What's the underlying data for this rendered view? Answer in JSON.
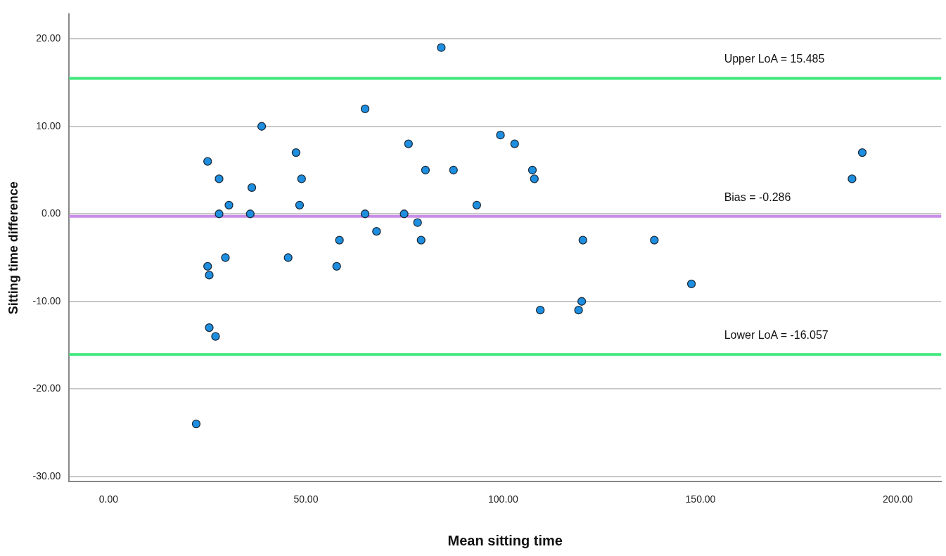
{
  "chart_data": {
    "type": "scatter",
    "xlabel": "Mean sitting time",
    "ylabel": "Sitting time difference",
    "xlim": [
      -10,
      211
    ],
    "ylim": [
      -30.6,
      22.8
    ],
    "xticks": [
      {
        "value": 0,
        "label": "0.00"
      },
      {
        "value": 50,
        "label": "50.00"
      },
      {
        "value": 100,
        "label": "100.00"
      },
      {
        "value": 150,
        "label": "150.00"
      },
      {
        "value": 200,
        "label": "200.00"
      }
    ],
    "yticks": [
      {
        "value": -30,
        "label": "-30.00"
      },
      {
        "value": -20,
        "label": "-20.00"
      },
      {
        "value": -10,
        "label": "-10.00"
      },
      {
        "value": 0,
        "label": "0.00"
      },
      {
        "value": 10,
        "label": "10.00"
      },
      {
        "value": 20,
        "label": "20.00"
      }
    ],
    "grid": "y",
    "marker": "circle",
    "legend": false,
    "series": [
      {
        "color": "#1e8fe0",
        "x": [
          22.2,
          25.1,
          25.1,
          25.5,
          25.5,
          27.1,
          28.0,
          28.0,
          29.6,
          30.5,
          36.3,
          35.9,
          38.8,
          45.5,
          47.5,
          48.4,
          48.9,
          57.8,
          58.5,
          65,
          65,
          67.9,
          74.9,
          76,
          78.3,
          79.2,
          80.3,
          84.3,
          87.4,
          93.3,
          99.3,
          102.9,
          107.4,
          107.9,
          109.4,
          119.1,
          119.9,
          120.2,
          138.3,
          147.7,
          188.4,
          191
        ],
        "values": [
          -24,
          6,
          -6,
          -7,
          -13,
          -14,
          4,
          0,
          -5,
          1,
          3,
          0,
          10,
          -5,
          7,
          1,
          4,
          -6,
          -3,
          12,
          0,
          -2,
          0,
          8,
          -1,
          -3,
          5,
          19,
          5,
          1,
          9,
          8,
          5,
          4,
          -11,
          -11,
          -10,
          -3,
          -3,
          -8,
          4,
          7
        ]
      }
    ],
    "ref_lines": [
      {
        "axis": "y",
        "value": 15.485,
        "label": "Upper LoA = 15.485",
        "color": "#3ee87a"
      },
      {
        "axis": "y",
        "value": -0.286,
        "label": "Bias = -0.286",
        "color": "#c98de8"
      },
      {
        "axis": "y",
        "value": -16.057,
        "label": "Lower LoA = -16.057",
        "color": "#3ee87a"
      }
    ]
  }
}
